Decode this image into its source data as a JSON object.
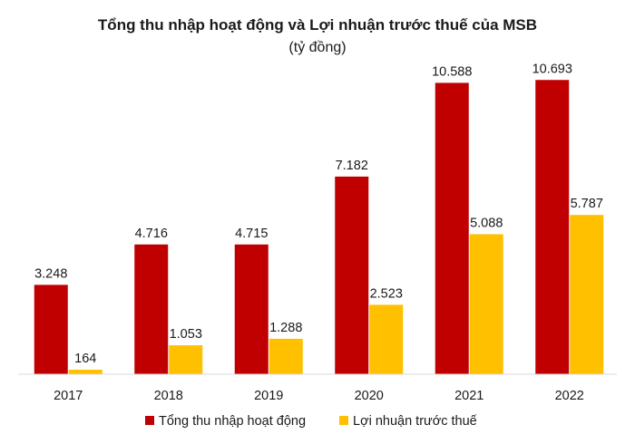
{
  "chart_data": {
    "type": "bar",
    "title": "Tổng thu nhập hoạt động và Lợi nhuận trước thuế của MSB",
    "subtitle": "(tỷ đồng)",
    "categories": [
      "2017",
      "2018",
      "2019",
      "2020",
      "2021",
      "2022"
    ],
    "series": [
      {
        "name": "Tổng thu nhập hoạt động",
        "color": "#c00000",
        "values": [
          3248,
          4716,
          4715,
          7182,
          10588,
          10693
        ],
        "labels": [
          "3.248",
          "4.716",
          "4.715",
          "7.182",
          "10.588",
          "10.693"
        ]
      },
      {
        "name": "Lợi nhuận trước thuế",
        "color": "#ffc000",
        "values": [
          164,
          1053,
          1288,
          2523,
          5088,
          5787
        ],
        "labels": [
          "164",
          "1.053",
          "1.288",
          "2.523",
          "5.088",
          "5.787"
        ]
      }
    ],
    "ylim": [
      0,
      11000
    ],
    "grid": false,
    "legend_position": "bottom"
  }
}
